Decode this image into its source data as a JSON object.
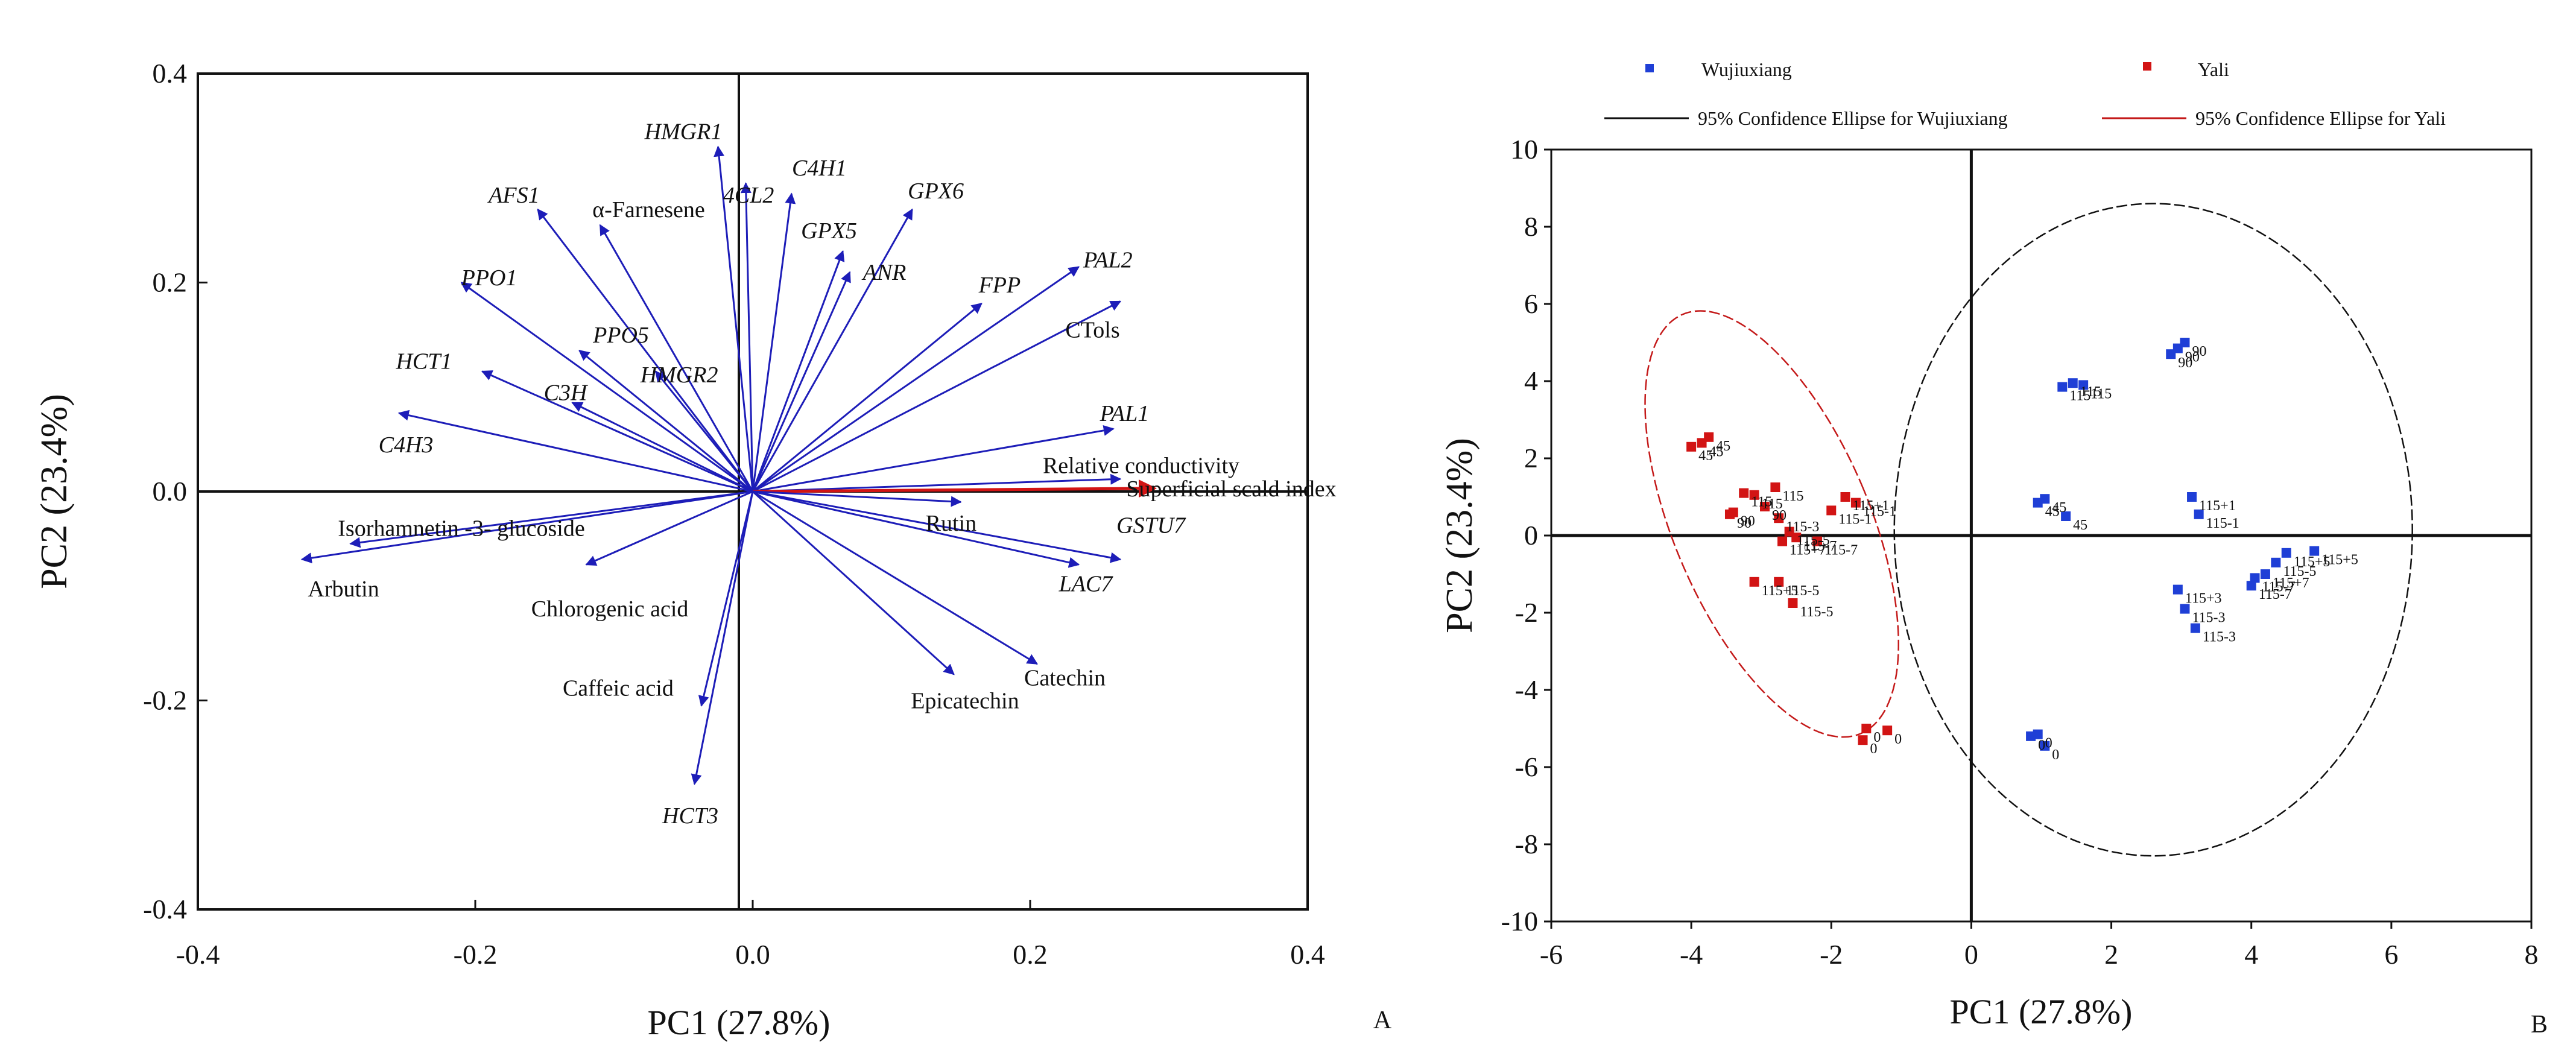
{
  "chart_data": [
    {
      "type": "scatter",
      "subtype": "loading-plot",
      "panel_label": "A",
      "xlabel": "PC1 (27.8%)",
      "ylabel": "PC2 (23.4%)",
      "xlim": [
        -0.4,
        0.4
      ],
      "ylim": [
        -0.4,
        0.4
      ],
      "xticks": [
        -0.4,
        -0.2,
        0.0,
        0.2,
        0.4
      ],
      "yticks": [
        -0.4,
        -0.2,
        0.0,
        0.2,
        0.4
      ],
      "xtick_labels": [
        "-0.4",
        "-0.2",
        "0.0",
        "0.2",
        "0.4"
      ],
      "ytick_labels": [
        "-0.4",
        "-0.2",
        "0.0",
        "0.2",
        "0.4"
      ],
      "vectors": [
        {
          "label": "HMGR1",
          "italic": true,
          "x": -0.025,
          "y": 0.33,
          "lx": -0.05,
          "ly": 0.345,
          "color": "#1d1db8"
        },
        {
          "label": "4CL2",
          "italic": true,
          "x": -0.005,
          "y": 0.295,
          "lx": -0.003,
          "ly": 0.284,
          "color": "#1d1db8"
        },
        {
          "label": "C4H1",
          "italic": true,
          "x": 0.028,
          "y": 0.285,
          "lx": 0.048,
          "ly": 0.31,
          "color": "#1d1db8"
        },
        {
          "label": "AFS1",
          "italic": true,
          "x": -0.155,
          "y": 0.27,
          "lx": -0.172,
          "ly": 0.284,
          "color": "#1d1db8"
        },
        {
          "label": "α-Farnesene",
          "italic": false,
          "x": -0.11,
          "y": 0.255,
          "lx": -0.075,
          "ly": 0.27,
          "color": "#1d1db8"
        },
        {
          "label": "GPX5",
          "italic": true,
          "x": 0.065,
          "y": 0.23,
          "lx": 0.055,
          "ly": 0.25,
          "color": "#1d1db8"
        },
        {
          "label": "GPX6",
          "italic": true,
          "x": 0.115,
          "y": 0.27,
          "lx": 0.132,
          "ly": 0.288,
          "color": "#1d1db8"
        },
        {
          "label": "ANR",
          "italic": true,
          "x": 0.07,
          "y": 0.21,
          "lx": 0.095,
          "ly": 0.21,
          "color": "#1d1db8"
        },
        {
          "label": "PPO1",
          "italic": true,
          "x": -0.21,
          "y": 0.2,
          "lx": -0.19,
          "ly": 0.205,
          "color": "#1d1db8"
        },
        {
          "label": "FPP",
          "italic": true,
          "x": 0.165,
          "y": 0.18,
          "lx": 0.178,
          "ly": 0.198,
          "color": "#1d1db8"
        },
        {
          "label": "PAL2",
          "italic": true,
          "x": 0.235,
          "y": 0.215,
          "lx": 0.256,
          "ly": 0.222,
          "color": "#1d1db8"
        },
        {
          "label": "CTols",
          "italic": false,
          "x": 0.265,
          "y": 0.182,
          "lx": 0.245,
          "ly": 0.155,
          "color": "#1d1db8"
        },
        {
          "label": "PPO5",
          "italic": true,
          "x": -0.125,
          "y": 0.135,
          "lx": -0.095,
          "ly": 0.15,
          "color": "#1d1db8"
        },
        {
          "label": "HCT1",
          "italic": true,
          "x": -0.195,
          "y": 0.115,
          "lx": -0.237,
          "ly": 0.125,
          "color": "#1d1db8"
        },
        {
          "label": "HMGR2",
          "italic": true,
          "x": -0.07,
          "y": 0.115,
          "lx": -0.053,
          "ly": 0.112,
          "color": "#1d1db8"
        },
        {
          "label": "C3H",
          "italic": true,
          "x": -0.13,
          "y": 0.085,
          "lx": -0.135,
          "ly": 0.095,
          "color": "#1d1db8"
        },
        {
          "label": "C4H3",
          "italic": true,
          "x": -0.255,
          "y": 0.075,
          "lx": -0.25,
          "ly": 0.045,
          "color": "#1d1db8"
        },
        {
          "label": "PAL1",
          "italic": true,
          "x": 0.26,
          "y": 0.06,
          "lx": 0.268,
          "ly": 0.075,
          "color": "#1d1db8"
        },
        {
          "label": "Relative conductivity",
          "italic": false,
          "x": 0.265,
          "y": 0.012,
          "lx": 0.28,
          "ly": 0.025,
          "color": "#1d1db8"
        },
        {
          "label": "Superficial scald index",
          "italic": false,
          "x": 0.29,
          "y": 0.003,
          "lx": 0.345,
          "ly": 0.003,
          "color": "#d21414"
        },
        {
          "label": "Rutin",
          "italic": false,
          "x": 0.15,
          "y": -0.01,
          "lx": 0.143,
          "ly": -0.03,
          "color": "#1d1db8"
        },
        {
          "label": "GSTU7",
          "italic": true,
          "x": 0.265,
          "y": -0.065,
          "lx": 0.287,
          "ly": -0.032,
          "color": "#1d1db8"
        },
        {
          "label": "LAC7",
          "italic": true,
          "x": 0.235,
          "y": -0.07,
          "lx": 0.24,
          "ly": -0.088,
          "color": "#1d1db8"
        },
        {
          "label": "Isorhamnetin -3- glucoside",
          "italic": false,
          "x": -0.29,
          "y": -0.05,
          "lx": -0.21,
          "ly": -0.035,
          "color": "#1d1db8"
        },
        {
          "label": "Arbutin",
          "italic": false,
          "x": -0.325,
          "y": -0.065,
          "lx": -0.295,
          "ly": -0.093,
          "color": "#1d1db8"
        },
        {
          "label": "Chlorogenic acid",
          "italic": false,
          "x": -0.12,
          "y": -0.07,
          "lx": -0.103,
          "ly": -0.112,
          "color": "#1d1db8"
        },
        {
          "label": "Catechin",
          "italic": false,
          "x": 0.205,
          "y": -0.165,
          "lx": 0.225,
          "ly": -0.178,
          "color": "#1d1db8"
        },
        {
          "label": "Epicatechin",
          "italic": false,
          "x": 0.145,
          "y": -0.175,
          "lx": 0.153,
          "ly": -0.2,
          "color": "#1d1db8"
        },
        {
          "label": "Caffeic acid",
          "italic": false,
          "x": -0.037,
          "y": -0.205,
          "lx": -0.097,
          "ly": -0.188,
          "color": "#1d1db8"
        },
        {
          "label": "HCT3",
          "italic": true,
          "x": -0.042,
          "y": -0.28,
          "lx": -0.045,
          "ly": -0.31,
          "color": "#1d1db8"
        }
      ]
    },
    {
      "type": "scatter",
      "panel_label": "B",
      "xlabel": "PC1 (27.8%)",
      "ylabel": "PC2 (23.4%)",
      "xlim": [
        -6,
        8
      ],
      "ylim": [
        -10,
        10
      ],
      "xticks": [
        -6,
        -4,
        -2,
        0,
        2,
        4,
        6,
        8
      ],
      "yticks": [
        -10,
        -8,
        -6,
        -4,
        -2,
        0,
        2,
        4,
        6,
        8,
        10
      ],
      "xtick_labels": [
        "-6",
        "-4",
        "-2",
        "0",
        "2",
        "4",
        "6",
        "8"
      ],
      "ytick_labels": [
        "-10",
        "-8",
        "-6",
        "-4",
        "-2",
        "0",
        "2",
        "4",
        "6",
        "8",
        "10"
      ],
      "legend": {
        "entries": [
          {
            "label": "Wujiuxiang",
            "kind": "marker",
            "color": "#1f3fd6"
          },
          {
            "label": "Yali",
            "kind": "marker",
            "color": "#d21414"
          },
          {
            "label": "95% Confidence Ellipse for Wujiuxiang",
            "kind": "line",
            "color": "#111111"
          },
          {
            "label": "95% Confidence Ellipse for Yali",
            "kind": "line",
            "color": "#c41a1a"
          }
        ]
      },
      "ellipses": [
        {
          "series": "Wujiuxiang",
          "cx": 2.6,
          "cy": 0.15,
          "rx": 3.7,
          "ry": 8.45,
          "angle": 0,
          "color": "#111111"
        },
        {
          "series": "Yali",
          "cx": -2.85,
          "cy": 0.3,
          "rx": 1.4,
          "ry": 5.9,
          "angle": -23,
          "color": "#c41a1a"
        }
      ],
      "series": [
        {
          "name": "Wujiuxiang",
          "color": "#1f3fd6",
          "points": [
            {
              "x": 1.3,
              "y": 3.85,
              "label": "115"
            },
            {
              "x": 1.45,
              "y": 3.95,
              "label": "115"
            },
            {
              "x": 1.6,
              "y": 3.9,
              "label": "115"
            },
            {
              "x": 2.85,
              "y": 4.7,
              "label": "90"
            },
            {
              "x": 2.95,
              "y": 4.85,
              "label": "90"
            },
            {
              "x": 3.05,
              "y": 5.0,
              "label": "90"
            },
            {
              "x": 0.95,
              "y": 0.85,
              "label": "45"
            },
            {
              "x": 1.05,
              "y": 0.95,
              "label": "45"
            },
            {
              "x": 1.35,
              "y": 0.5,
              "label": "45"
            },
            {
              "x": 3.15,
              "y": 1.0,
              "label": "115+1"
            },
            {
              "x": 3.25,
              "y": 0.55,
              "label": "115-1"
            },
            {
              "x": 4.5,
              "y": -0.45,
              "label": "115+5"
            },
            {
              "x": 4.35,
              "y": -0.7,
              "label": "115-5"
            },
            {
              "x": 4.9,
              "y": -0.4,
              "label": "115+5"
            },
            {
              "x": 4.05,
              "y": -1.1,
              "label": "115-7"
            },
            {
              "x": 4.2,
              "y": -1.0,
              "label": "115+7"
            },
            {
              "x": 4.0,
              "y": -1.3,
              "label": "115-7"
            },
            {
              "x": 2.95,
              "y": -1.4,
              "label": "115+3"
            },
            {
              "x": 3.05,
              "y": -1.9,
              "label": "115-3"
            },
            {
              "x": 3.2,
              "y": -2.4,
              "label": "115-3"
            },
            {
              "x": 0.85,
              "y": -5.2,
              "label": "0"
            },
            {
              "x": 0.95,
              "y": -5.15,
              "label": "0"
            },
            {
              "x": 1.05,
              "y": -5.45,
              "label": "0"
            }
          ]
        },
        {
          "name": "Yali",
          "color": "#d21414",
          "points": [
            {
              "x": -4.0,
              "y": 2.3,
              "label": "45"
            },
            {
              "x": -3.85,
              "y": 2.4,
              "label": "45"
            },
            {
              "x": -3.75,
              "y": 2.55,
              "label": "45"
            },
            {
              "x": -3.1,
              "y": 1.05,
              "label": "115"
            },
            {
              "x": -3.25,
              "y": 1.1,
              "label": "115"
            },
            {
              "x": -2.8,
              "y": 1.25,
              "label": "115"
            },
            {
              "x": -3.4,
              "y": 0.6,
              "label": "90"
            },
            {
              "x": -3.45,
              "y": 0.55,
              "label": "90"
            },
            {
              "x": -2.95,
              "y": 0.75,
              "label": "90"
            },
            {
              "x": -2.6,
              "y": 0.1,
              "label": "115-5"
            },
            {
              "x": -2.5,
              "y": -0.05,
              "label": "115-7"
            },
            {
              "x": -2.75,
              "y": 0.45,
              "label": "115-3"
            },
            {
              "x": -2.2,
              "y": -0.15,
              "label": "115-7"
            },
            {
              "x": -2.0,
              "y": 0.65,
              "label": "115-1"
            },
            {
              "x": -1.8,
              "y": 1.0,
              "label": "115+1"
            },
            {
              "x": -1.65,
              "y": 0.85,
              "label": "115-1"
            },
            {
              "x": -2.7,
              "y": -0.15,
              "label": "115+7"
            },
            {
              "x": -3.1,
              "y": -1.2,
              "label": "115+5"
            },
            {
              "x": -2.75,
              "y": -1.2,
              "label": "115-5"
            },
            {
              "x": -2.55,
              "y": -1.75,
              "label": "115-5"
            },
            {
              "x": -1.5,
              "y": -5.0,
              "label": "0"
            },
            {
              "x": -1.2,
              "y": -5.05,
              "label": "0"
            },
            {
              "x": -1.55,
              "y": -5.3,
              "label": "0"
            }
          ]
        }
      ]
    }
  ]
}
